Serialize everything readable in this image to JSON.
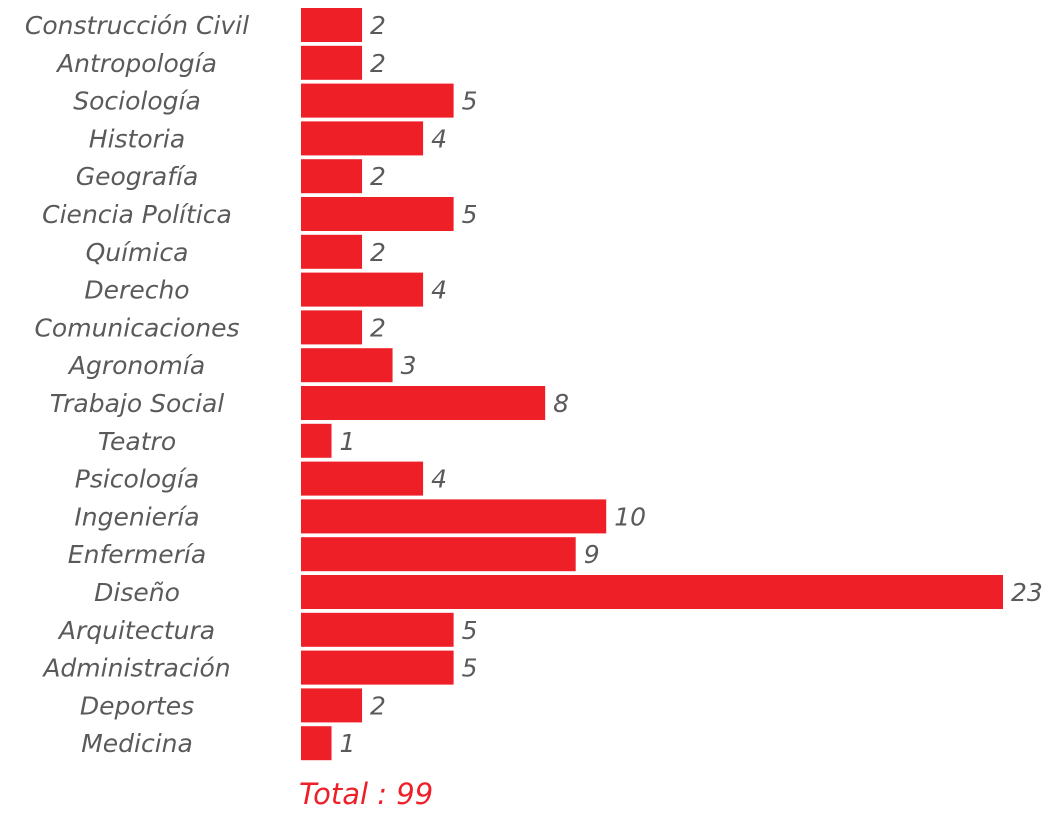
{
  "chart_data": {
    "type": "bar",
    "orientation": "horizontal",
    "categories": [
      "Construcción Civil",
      "Antropología",
      "Sociología",
      "Historia",
      "Geografía",
      "Ciencia Política",
      "Química",
      "Derecho",
      "Comunicaciones",
      "Agronomía",
      "Trabajo Social",
      "Teatro",
      "Psicología",
      "Ingeniería",
      "Enfermería",
      "Diseño",
      "Arquitectura",
      "Administración",
      "Deportes",
      "Medicina"
    ],
    "values": [
      2,
      2,
      5,
      4,
      2,
      5,
      2,
      4,
      2,
      3,
      8,
      1,
      4,
      10,
      9,
      23,
      5,
      5,
      2,
      1
    ],
    "data_labels": true,
    "grid": false,
    "xlim": [
      0,
      23
    ],
    "bar_color": "#ee1f27"
  },
  "total_label": "Total : 99"
}
